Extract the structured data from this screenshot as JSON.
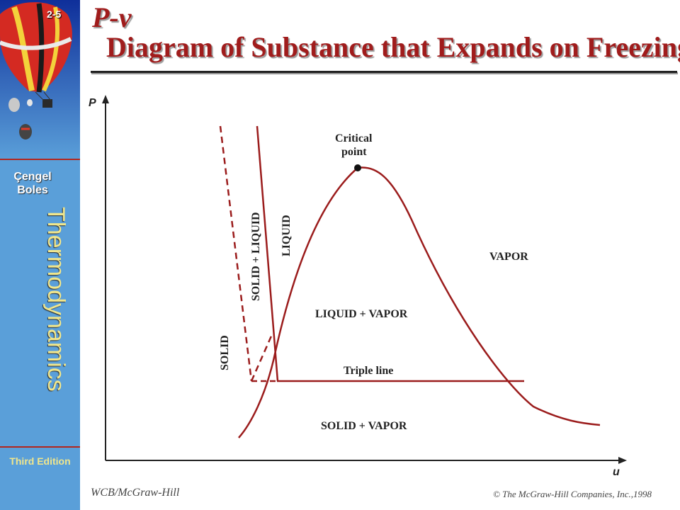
{
  "slide": {
    "number": "2-5",
    "title_symbol": "P-v",
    "title_text": "  Diagram of Substance that Expands on Freezing",
    "author_line1": "Çengel",
    "author_line2": "Boles",
    "book": "Thermodynamics",
    "edition": "Third Edition",
    "publisher": "WCB/McGraw-Hill",
    "copyright": "© The McGraw-Hill Companies, Inc.,1998"
  },
  "diagram": {
    "axis_y_label": "P",
    "axis_x_label": "u",
    "labels": {
      "critical_1": "Critical",
      "critical_2": "point",
      "vapor": "VAPOR",
      "liquid_vapor": "LIQUID + VAPOR",
      "triple_line": "Triple line",
      "solid_vapor": "SOLID + VAPOR",
      "liquid": "LIQUID",
      "solid_liquid": "SOLID + LIQUID",
      "solid": "SOLID"
    },
    "colors": {
      "curve": "#9b1c1c",
      "axis": "#222222",
      "sidebar": "#5a9fd9",
      "title": "#a01c1c"
    }
  }
}
